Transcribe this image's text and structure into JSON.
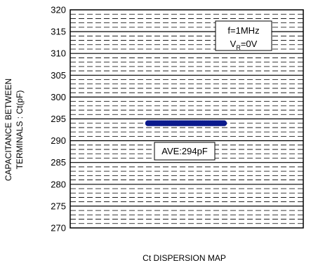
{
  "chart_data": {
    "type": "scatter",
    "title": "",
    "xlabel": "Ct DISPERSION MAP",
    "ylabel": [
      "CAPACITANCE BETWEEN",
      "TERMINALS : Ct(pF)"
    ],
    "ylim": [
      270,
      320
    ],
    "y_ticks": [
      270,
      275,
      280,
      285,
      290,
      295,
      300,
      305,
      310,
      315,
      320
    ],
    "grid": true,
    "series": [
      {
        "values": [
          294,
          294,
          294,
          294,
          294,
          294,
          294,
          294,
          294,
          294,
          294,
          294,
          294,
          294,
          294,
          294,
          294,
          294,
          294,
          294,
          294,
          294,
          294,
          294,
          294,
          294,
          294,
          294,
          294,
          294,
          294,
          294,
          294,
          294,
          294,
          294,
          294,
          294,
          294,
          294
        ]
      }
    ],
    "point_color": "#0b1a8c",
    "annotations": {
      "conditions": {
        "line1": "f=1MHz",
        "line2_main": "V",
        "line2_sub": "R",
        "line2_tail": "=0V"
      },
      "average": {
        "text": "AVE:294pF"
      }
    }
  }
}
